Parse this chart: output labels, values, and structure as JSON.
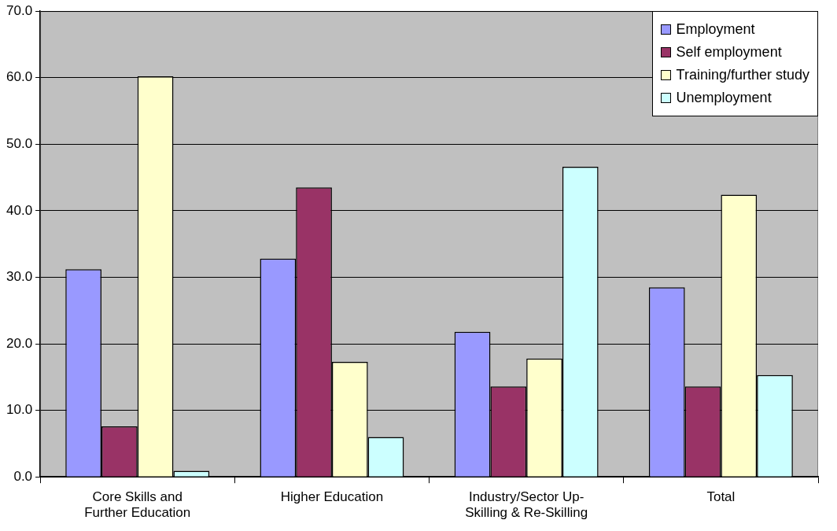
{
  "chart_data": {
    "type": "bar",
    "categories": [
      "Core Skills and Further Education",
      "Higher Education",
      "Industry/Sector Up-Skilling & Re-Skilling",
      "Total"
    ],
    "series": [
      {
        "name": "Employment",
        "color": "#9999ff",
        "values": [
          31.2,
          32.8,
          21.8,
          28.5
        ]
      },
      {
        "name": "Self employment",
        "color": "#993366",
        "values": [
          7.6,
          43.5,
          13.6,
          13.6
        ]
      },
      {
        "name": "Training/further study",
        "color": "#ffffcc",
        "values": [
          60.2,
          17.3,
          17.8,
          42.4
        ]
      },
      {
        "name": "Unemployment",
        "color": "#ccffff",
        "values": [
          0.9,
          6.0,
          46.6,
          15.3
        ]
      }
    ],
    "ylim": [
      0,
      70
    ],
    "yticks": [
      {
        "value": 0,
        "label": "0.0"
      },
      {
        "value": 10,
        "label": "10.0"
      },
      {
        "value": 20,
        "label": "20.0"
      },
      {
        "value": 30,
        "label": "30.0"
      },
      {
        "value": 40,
        "label": "40.0"
      },
      {
        "value": 50,
        "label": "50.0"
      },
      {
        "value": 60,
        "label": "60.0"
      },
      {
        "value": 70,
        "label": "70.0"
      }
    ],
    "grid": "y",
    "legend": "top right"
  }
}
